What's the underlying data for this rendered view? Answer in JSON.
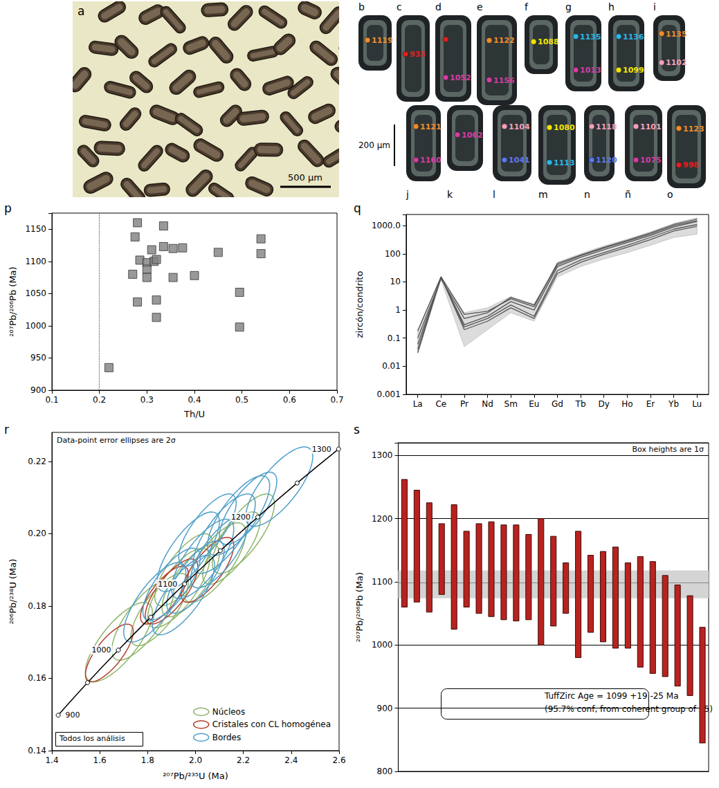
{
  "photo": {
    "letter": "a",
    "scale_bar": "500 µm",
    "color": "#e9e7c5"
  },
  "grains": {
    "scale_bar": "200 µm",
    "items": [
      {
        "letter": "b",
        "spots": [
          {
            "label": 1119,
            "color": "#f28c28"
          }
        ]
      },
      {
        "letter": "c",
        "spots": [
          {
            "label": 935,
            "color": "#e02020"
          }
        ]
      },
      {
        "letter": "d",
        "spots": [
          {
            "label": null,
            "color": "#e02020"
          },
          {
            "label": 1052,
            "color": "#d63ca0"
          }
        ]
      },
      {
        "letter": "e",
        "spots": [
          {
            "label": 1122,
            "color": "#f28c28"
          },
          {
            "label": 1156,
            "color": "#d63ca0"
          }
        ]
      },
      {
        "letter": "f",
        "spots": [
          {
            "label": 1088,
            "color": "#f2e400"
          }
        ]
      },
      {
        "letter": "g",
        "spots": [
          {
            "label": 1135,
            "color": "#29b6e8"
          },
          {
            "label": 1013,
            "color": "#d63ca0"
          }
        ]
      },
      {
        "letter": "h",
        "spots": [
          {
            "label": 1136,
            "color": "#29b6e8"
          },
          {
            "label": 1099,
            "color": "#f2e400"
          }
        ]
      },
      {
        "letter": "i",
        "spots": [
          {
            "label": 1135,
            "color": "#f28c28"
          },
          {
            "label": 1102,
            "color": "#f4a0b8"
          }
        ]
      },
      {
        "letter": "j",
        "spots": [
          {
            "label": 1121,
            "color": "#f28c28"
          },
          {
            "label": 1160,
            "color": "#d63ca0"
          }
        ]
      },
      {
        "letter": "k",
        "spots": [
          {
            "label": 1062,
            "color": "#d63ca0"
          }
        ]
      },
      {
        "letter": "l",
        "spots": [
          {
            "label": 1104,
            "color": "#f4a0b8"
          },
          {
            "label": 1041,
            "color": "#5a78f0"
          }
        ]
      },
      {
        "letter": "m",
        "spots": [
          {
            "label": 1080,
            "color": "#f2e400"
          },
          {
            "label": 1113,
            "color": "#29b6e8"
          }
        ]
      },
      {
        "letter": "n",
        "spots": [
          {
            "label": 1118,
            "color": "#f4a0b8"
          },
          {
            "label": 1120,
            "color": "#5a78f0"
          }
        ]
      },
      {
        "letter": "ñ",
        "spots": [
          {
            "label": 1101,
            "color": "#f4a0b8"
          },
          {
            "label": 1075,
            "color": "#d63ca0"
          }
        ]
      },
      {
        "letter": "o",
        "spots": [
          {
            "label": 1123,
            "color": "#f28c28"
          },
          {
            "label": 998,
            "color": "#e02020"
          }
        ]
      }
    ]
  },
  "chart_data": [
    {
      "letter": "p",
      "type": "scatter",
      "x_label": "Th/U",
      "y_label": "²⁰⁷Pb/²⁰⁶Pb (Ma)",
      "x": [
        0.22,
        0.27,
        0.275,
        0.28,
        0.28,
        0.285,
        0.3,
        0.3,
        0.3,
        0.31,
        0.315,
        0.32,
        0.32,
        0.32,
        0.335,
        0.335,
        0.355,
        0.355,
        0.375,
        0.4,
        0.45,
        0.495,
        0.495,
        0.54,
        0.54
      ],
      "values": [
        935,
        1080,
        1138,
        1160,
        1037,
        1102,
        1098,
        1088,
        1075,
        1118,
        1100,
        1040,
        1013,
        1103,
        1155,
        1123,
        1120,
        1075,
        1121,
        1078,
        1114,
        1052,
        998,
        1135,
        1112
      ],
      "xlim": [
        0.1,
        0.7
      ],
      "xticks": [
        0.1,
        0.2,
        0.3,
        0.4,
        0.5,
        0.6,
        0.7
      ],
      "ylim": [
        900,
        1175
      ],
      "yticks": [
        900,
        950,
        1000,
        1050,
        1100,
        1150
      ],
      "marker": "square",
      "color": "#808080",
      "grid": false,
      "reference_line": {
        "x": 0.2,
        "line_style": "dotted"
      }
    },
    {
      "letter": "q",
      "type": "line",
      "y_label": "zircón/condrito",
      "log": "y",
      "grid": false,
      "categories": [
        "La",
        "Ce",
        "Pr",
        "Nd",
        "Sm",
        "Eu",
        "Gd",
        "Tb",
        "Dy",
        "Ho",
        "Er",
        "Yb",
        "Lu"
      ],
      "ylim": [
        0.001,
        2500
      ],
      "yticks": [
        0.001,
        0.01,
        0.1,
        1,
        10,
        100,
        {
          "value": 1000,
          "label": "1000.0"
        }
      ],
      "envelope": {
        "color": "#dcdcdc",
        "lower": [
          0.03,
          12,
          0.05,
          0.2,
          0.8,
          0.4,
          15,
          35,
          65,
          110,
          200,
          380,
          500
        ],
        "upper": [
          0.2,
          16,
          0.8,
          1.2,
          3,
          1.6,
          50,
          100,
          190,
          330,
          600,
          1200,
          1900
        ]
      },
      "series": [
        {
          "color": "#555555",
          "values": [
            0.18,
            15,
            0.7,
            0.9,
            2.5,
            1.3,
            45,
            90,
            170,
            300,
            550,
            1100,
            1700
          ]
        },
        {
          "color": "#555555",
          "values": [
            0.06,
            14,
            0.3,
            0.6,
            2.0,
            1.0,
            35,
            75,
            140,
            250,
            450,
            900,
            1400
          ]
        },
        {
          "color": "#555555",
          "values": [
            0.03,
            15,
            0.25,
            0.5,
            1.5,
            0.6,
            25,
            60,
            110,
            200,
            380,
            750,
            1100
          ]
        },
        {
          "color": "#555555",
          "values": [
            0.1,
            13,
            0.5,
            0.8,
            2.8,
            1.5,
            40,
            85,
            160,
            280,
            500,
            1000,
            1500
          ]
        },
        {
          "color": "#555555",
          "values": [
            0.04,
            15,
            0.2,
            0.4,
            1.2,
            0.5,
            20,
            50,
            95,
            170,
            320,
            650,
            950
          ]
        }
      ]
    },
    {
      "letter": "r",
      "type": "concordia",
      "x_label": "²⁰⁷Pb/²³⁵U (Ma)",
      "y_label": "²⁰⁶Pb/²³⁸U (Ma)",
      "xlim": [
        1.4,
        2.6
      ],
      "xticks": [
        1.4,
        1.6,
        1.8,
        {
          "value": 2,
          "label": "2.0"
        },
        2.2,
        2.4,
        2.6
      ],
      "ylim": [
        0.14,
        0.228
      ],
      "yticks": [
        0.14,
        0.16,
        0.18,
        {
          "value": 0.2,
          "label": "0.20"
        },
        0.22
      ],
      "annotations": [
        "Data-point error ellipses are 2σ",
        "Todos los análisis"
      ],
      "legend": "lower right",
      "grid": false,
      "concordia": {
        "color": "#000000",
        "ages": [
          900,
          950,
          1000,
          1050,
          1100,
          1150,
          1200,
          1250,
          1300
        ],
        "x": [
          1.4263,
          1.5488,
          1.6775,
          1.8126,
          1.9545,
          2.1037,
          2.2603,
          2.4248,
          2.5977
        ],
        "y": [
          0.1498,
          0.1588,
          0.1678,
          0.1769,
          0.1861,
          0.1953,
          0.2046,
          0.214,
          0.2234
        ],
        "labeled_ages": [
          900,
          1000,
          1100,
          1200,
          1300
        ]
      },
      "series": [
        {
          "name": "Núcleos",
          "color": "#8db56a",
          "ellipses": [
            {
              "x": 1.68,
              "y": 0.17,
              "x_err": 0.14,
              "y_err": 0.011,
              "rho": 0.75
            },
            {
              "x": 1.78,
              "y": 0.176,
              "x_err": 0.13,
              "y_err": 0.011,
              "rho": 0.75
            },
            {
              "x": 1.85,
              "y": 0.179,
              "x_err": 0.12,
              "y_err": 0.01,
              "rho": 0.75
            },
            {
              "x": 1.93,
              "y": 0.185,
              "x_err": 0.13,
              "y_err": 0.011,
              "rho": 0.75
            },
            {
              "x": 1.98,
              "y": 0.187,
              "x_err": 0.12,
              "y_err": 0.01,
              "rho": 0.75
            },
            {
              "x": 2.08,
              "y": 0.192,
              "x_err": 0.13,
              "y_err": 0.011,
              "rho": 0.75
            },
            {
              "x": 2.15,
              "y": 0.196,
              "x_err": 0.12,
              "y_err": 0.01,
              "rho": 0.75
            },
            {
              "x": 2.2,
              "y": 0.2,
              "x_err": 0.13,
              "y_err": 0.011,
              "rho": 0.75
            },
            {
              "x": 1.95,
              "y": 0.19,
              "x_err": 0.12,
              "y_err": 0.01,
              "rho": 0.75
            }
          ]
        },
        {
          "name": "Cristales con CL homogénea",
          "color": "#b5402f",
          "ellipses": [
            {
              "x": 1.64,
              "y": 0.167,
              "x_err": 0.1,
              "y_err": 0.008,
              "rho": 0.75
            },
            {
              "x": 1.9,
              "y": 0.184,
              "x_err": 0.11,
              "y_err": 0.009,
              "rho": 0.75
            },
            {
              "x": 1.87,
              "y": 0.183,
              "x_err": 0.1,
              "y_err": 0.008,
              "rho": 0.75
            },
            {
              "x": 2.05,
              "y": 0.19,
              "x_err": 0.11,
              "y_err": 0.009,
              "rho": 0.75
            }
          ]
        },
        {
          "name": "Bordes",
          "color": "#4f9fc9",
          "ellipses": [
            {
              "x": 1.83,
              "y": 0.181,
              "x_err": 0.13,
              "y_err": 0.011,
              "rho": 0.75
            },
            {
              "x": 1.9,
              "y": 0.186,
              "x_err": 0.12,
              "y_err": 0.01,
              "rho": 0.75
            },
            {
              "x": 1.95,
              "y": 0.183,
              "x_err": 0.13,
              "y_err": 0.011,
              "rho": 0.75
            },
            {
              "x": 2.0,
              "y": 0.188,
              "x_err": 0.12,
              "y_err": 0.01,
              "rho": 0.75
            },
            {
              "x": 2.03,
              "y": 0.193,
              "x_err": 0.13,
              "y_err": 0.011,
              "rho": 0.75
            },
            {
              "x": 2.1,
              "y": 0.195,
              "x_err": 0.12,
              "y_err": 0.01,
              "rho": 0.75
            },
            {
              "x": 2.12,
              "y": 0.2,
              "x_err": 0.13,
              "y_err": 0.011,
              "rho": 0.75
            },
            {
              "x": 2.05,
              "y": 0.201,
              "x_err": 0.12,
              "y_err": 0.01,
              "rho": 0.75
            },
            {
              "x": 2.18,
              "y": 0.205,
              "x_err": 0.13,
              "y_err": 0.011,
              "rho": 0.75
            },
            {
              "x": 2.22,
              "y": 0.207,
              "x_err": 0.12,
              "y_err": 0.01,
              "rho": 0.75
            },
            {
              "x": 2.35,
              "y": 0.213,
              "x_err": 0.14,
              "y_err": 0.011,
              "rho": 0.75
            },
            {
              "x": 1.97,
              "y": 0.195,
              "x_err": 0.13,
              "y_err": 0.011,
              "rho": 0.75
            }
          ]
        }
      ]
    },
    {
      "letter": "s",
      "type": "range_bar",
      "y_label": "²⁰⁷Pb/²⁰⁶Pb (Ma)",
      "tick_labels": "y",
      "grid": true,
      "categories": [
        null,
        null,
        null,
        null,
        null,
        null,
        null,
        null,
        null,
        null,
        null,
        null,
        null,
        null,
        null,
        null,
        null,
        null,
        null,
        null,
        null,
        null,
        null,
        null,
        null
      ],
      "values": [
        [
          1060,
          1262
        ],
        [
          1068,
          1245
        ],
        [
          1052,
          1225
        ],
        [
          1080,
          1192
        ],
        [
          1025,
          1222
        ],
        [
          1060,
          1180
        ],
        [
          1050,
          1192
        ],
        [
          1045,
          1195
        ],
        [
          1040,
          1190
        ],
        [
          1038,
          1190
        ],
        [
          1040,
          1175
        ],
        [
          1000,
          1200
        ],
        [
          1030,
          1172
        ],
        [
          1050,
          1130
        ],
        [
          980,
          1180
        ],
        [
          1020,
          1142
        ],
        [
          1005,
          1148
        ],
        [
          995,
          1155
        ],
        [
          995,
          1130
        ],
        [
          965,
          1140
        ],
        [
          955,
          1132
        ],
        [
          950,
          1110
        ],
        [
          935,
          1095
        ],
        [
          920,
          1078
        ],
        [
          845,
          1028
        ]
      ],
      "color": "#b8231f",
      "ylim": [
        800,
        1320
      ],
      "yticks": [
        800,
        900,
        1000,
        1100,
        1200,
        1300
      ],
      "tuffzirc": {
        "age": 1099,
        "plus": 19,
        "minus": 25,
        "color": "#d4d4d4"
      },
      "annotations": [
        "Box heights are 1σ",
        "TuffZirc Age = 1099 +19 -25 Ma",
        "(95.7% conf, from coherent group of 25)"
      ]
    }
  ]
}
